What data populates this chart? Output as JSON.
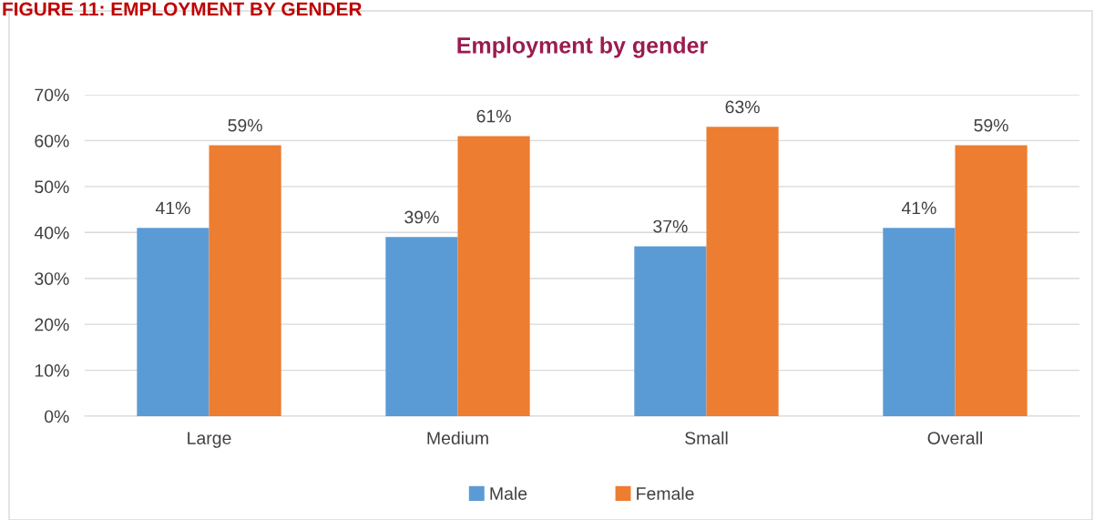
{
  "chart_data": {
    "type": "bar",
    "title": "Employment by gender",
    "annotations": [
      "FIGURE 11: EMPLOYMENT BY GENDER"
    ],
    "categories": [
      "Large",
      "Medium",
      "Small",
      "Overall"
    ],
    "series": [
      {
        "name": "Male",
        "color": "#5b9bd5",
        "values": [
          41,
          39,
          37,
          41
        ],
        "value_labels": [
          "41%",
          "39%",
          "37%",
          "41%"
        ]
      },
      {
        "name": "Female",
        "color": "#ed7d31",
        "values": [
          59,
          61,
          63,
          59
        ],
        "value_labels": [
          "59%",
          "61%",
          "63%",
          "59%"
        ]
      }
    ],
    "ylim": [
      0,
      70
    ],
    "yticks": [
      {
        "value": 0,
        "label": "0%"
      },
      {
        "value": 10,
        "label": "10%"
      },
      {
        "value": 20,
        "label": "20%"
      },
      {
        "value": 30,
        "label": "30%"
      },
      {
        "value": 40,
        "label": "40%"
      },
      {
        "value": 50,
        "label": "50%"
      },
      {
        "value": 60,
        "label": "60%"
      },
      {
        "value": 70,
        "label": "70%"
      }
    ],
    "grid": "y",
    "legend": "bottom"
  }
}
